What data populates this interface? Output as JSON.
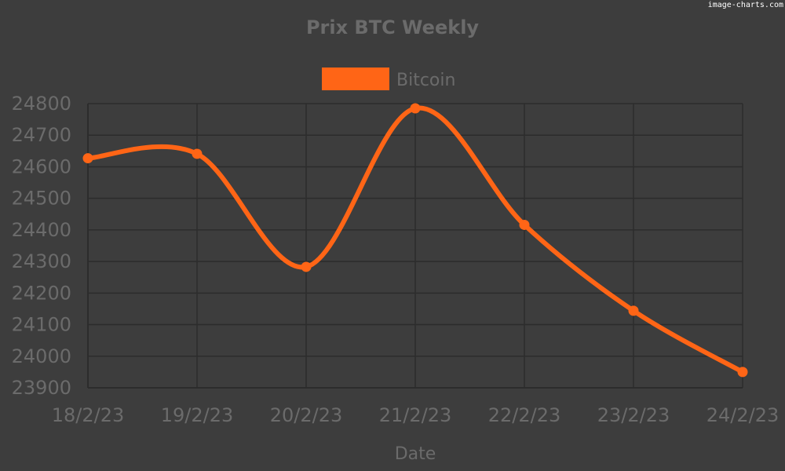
{
  "watermark": "image-charts.com",
  "chart_data": {
    "type": "line",
    "title": "Prix BTC Weekly",
    "xlabel": "Date",
    "ylabel": "",
    "categories": [
      "18/2/23",
      "19/2/23",
      "20/2/23",
      "21/2/23",
      "22/2/23",
      "23/2/23",
      "24/2/23"
    ],
    "series": [
      {
        "name": "Bitcoin",
        "color": "#ff6516",
        "values": [
          24627,
          24641,
          24283,
          24785,
          24416,
          24144,
          23950
        ]
      }
    ],
    "yticks": [
      23900,
      24000,
      24100,
      24200,
      24300,
      24400,
      24500,
      24600,
      24700,
      24800
    ],
    "ylim": [
      23900,
      24800
    ],
    "grid": true,
    "smooth": true,
    "legend_position": "top-center",
    "colors": {
      "background": "#3d3d3d",
      "text": "#6b6b6b",
      "grid": "#2c2c2c"
    }
  }
}
